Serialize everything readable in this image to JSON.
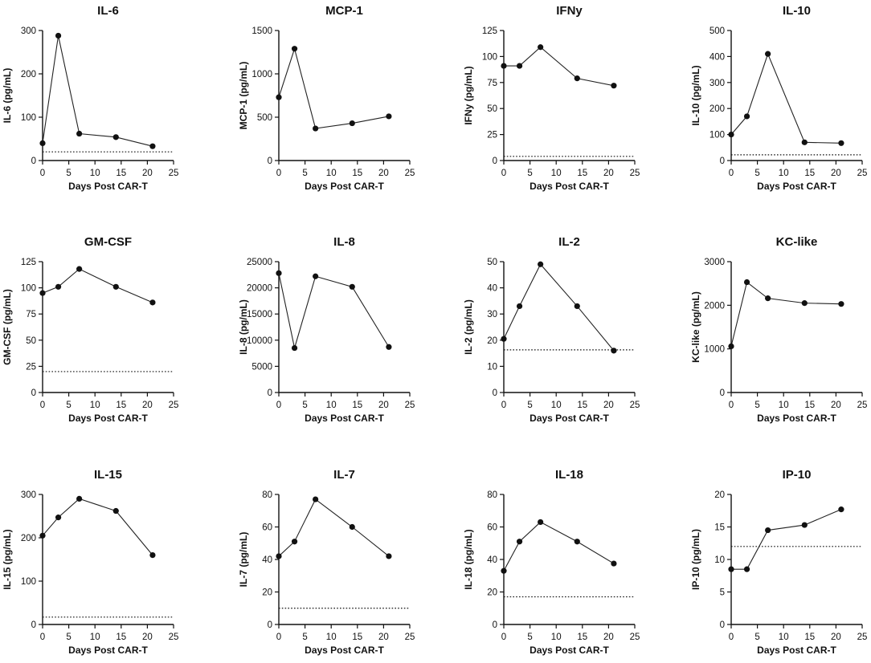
{
  "figure": {
    "chart_data": [
      {
        "type": "line",
        "title": "IL-6",
        "xlabel": "Days Post CAR-T",
        "ylabel": "IL-6 (pg/mL)",
        "x": [
          0,
          3,
          7,
          14,
          21
        ],
        "values": [
          40,
          288,
          62,
          54,
          33
        ],
        "xlim": [
          0,
          25
        ],
        "xticks": [
          0,
          5,
          10,
          15,
          20,
          25
        ],
        "ylim": [
          0,
          300
        ],
        "yticks": [
          0,
          100,
          200,
          300
        ],
        "ref_line": 20
      },
      {
        "type": "line",
        "title": "MCP-1",
        "xlabel": "Days Post CAR-T",
        "ylabel": "MCP-1 (pg/mL)",
        "x": [
          0,
          3,
          7,
          14,
          21
        ],
        "values": [
          730,
          1290,
          370,
          430,
          510
        ],
        "xlim": [
          0,
          25
        ],
        "xticks": [
          0,
          5,
          10,
          15,
          20,
          25
        ],
        "ylim": [
          0,
          1500
        ],
        "yticks": [
          0,
          500,
          1000,
          1500
        ],
        "ref_line": null
      },
      {
        "type": "line",
        "title": "IFNy",
        "xlabel": "Days Post CAR-T",
        "ylabel": "IFNy (pg/mL)",
        "x": [
          0,
          3,
          7,
          14,
          21
        ],
        "values": [
          91,
          91,
          109,
          79,
          72
        ],
        "xlim": [
          0,
          25
        ],
        "xticks": [
          0,
          5,
          10,
          15,
          20,
          25
        ],
        "ylim": [
          0,
          125
        ],
        "yticks": [
          0,
          25,
          50,
          75,
          100,
          125
        ],
        "ref_line": 4
      },
      {
        "type": "line",
        "title": "IL-10",
        "xlabel": "Days Post CAR-T",
        "ylabel": "IL-10 (pg/mL)",
        "x": [
          0,
          3,
          7,
          14,
          21
        ],
        "values": [
          100,
          170,
          410,
          70,
          67
        ],
        "xlim": [
          0,
          25
        ],
        "xticks": [
          0,
          5,
          10,
          15,
          20,
          25
        ],
        "ylim": [
          0,
          500
        ],
        "yticks": [
          0,
          100,
          200,
          300,
          400,
          500
        ],
        "ref_line": 22
      },
      {
        "type": "line",
        "title": "GM-CSF",
        "xlabel": "Days Post CAR-T",
        "ylabel": "GM-CSF (pg/mL)",
        "x": [
          0,
          3,
          7,
          14,
          21
        ],
        "values": [
          95,
          101,
          118,
          101,
          86
        ],
        "xlim": [
          0,
          25
        ],
        "xticks": [
          0,
          5,
          10,
          15,
          20,
          25
        ],
        "ylim": [
          0,
          125
        ],
        "yticks": [
          0,
          25,
          50,
          75,
          100,
          125
        ],
        "ref_line": 20
      },
      {
        "type": "line",
        "title": "IL-8",
        "xlabel": "Days Post CAR-T",
        "ylabel": "IL-8 (pg/mL)",
        "x": [
          0,
          3,
          7,
          14,
          21
        ],
        "values": [
          22800,
          8500,
          22200,
          20200,
          8700
        ],
        "xlim": [
          0,
          25
        ],
        "xticks": [
          0,
          5,
          10,
          15,
          20,
          25
        ],
        "ylim": [
          0,
          25000
        ],
        "yticks": [
          0,
          5000,
          10000,
          15000,
          20000,
          25000
        ],
        "ref_line": null
      },
      {
        "type": "line",
        "title": "IL-2",
        "xlabel": "Days Post CAR-T",
        "ylabel": "IL-2 (pg/mL)",
        "x": [
          0,
          3,
          7,
          14,
          21
        ],
        "values": [
          20.5,
          33,
          49,
          33,
          16
        ],
        "xlim": [
          0,
          25
        ],
        "xticks": [
          0,
          5,
          10,
          15,
          20,
          25
        ],
        "ylim": [
          0,
          50
        ],
        "yticks": [
          0,
          10,
          20,
          30,
          40,
          50
        ],
        "ref_line": 16.3
      },
      {
        "type": "line",
        "title": "KC-like",
        "xlabel": "Days Post CAR-T",
        "ylabel": "KC-like (pg/mL)",
        "x": [
          0,
          3,
          7,
          14,
          21
        ],
        "values": [
          1060,
          2530,
          2160,
          2050,
          2030
        ],
        "xlim": [
          0,
          25
        ],
        "xticks": [
          0,
          5,
          10,
          15,
          20,
          25
        ],
        "ylim": [
          0,
          3000
        ],
        "yticks": [
          0,
          1000,
          2000,
          3000
        ],
        "ref_line": null
      },
      {
        "type": "line",
        "title": "IL-15",
        "xlabel": "Days Post CAR-T",
        "ylabel": "IL-15 (pg/mL)",
        "x": [
          0,
          3,
          7,
          14,
          21
        ],
        "values": [
          205,
          247,
          290,
          262,
          160
        ],
        "xlim": [
          0,
          25
        ],
        "xticks": [
          0,
          5,
          10,
          15,
          20,
          25
        ],
        "ylim": [
          0,
          300
        ],
        "yticks": [
          0,
          100,
          200,
          300
        ],
        "ref_line": 17
      },
      {
        "type": "line",
        "title": "IL-7",
        "xlabel": "Days Post CAR-T",
        "ylabel": "IL-7 (pg/mL)",
        "x": [
          0,
          3,
          7,
          14,
          21
        ],
        "values": [
          42,
          51,
          77,
          60,
          42
        ],
        "xlim": [
          0,
          25
        ],
        "xticks": [
          0,
          5,
          10,
          15,
          20,
          25
        ],
        "ylim": [
          0,
          80
        ],
        "yticks": [
          0,
          20,
          40,
          60,
          80
        ],
        "ref_line": 10
      },
      {
        "type": "line",
        "title": "IL-18",
        "xlabel": "Days Post CAR-T",
        "ylabel": "IL-18 (pg/mL)",
        "x": [
          0,
          3,
          7,
          14,
          21
        ],
        "values": [
          33,
          51,
          63,
          51,
          37.5
        ],
        "xlim": [
          0,
          25
        ],
        "xticks": [
          0,
          5,
          10,
          15,
          20,
          25
        ],
        "ylim": [
          0,
          80
        ],
        "yticks": [
          0,
          20,
          40,
          60,
          80
        ],
        "ref_line": 17
      },
      {
        "type": "line",
        "title": "IP-10",
        "xlabel": "Days Post CAR-T",
        "ylabel": "IP-10 (pg/mL)",
        "x": [
          0,
          3,
          7,
          14,
          21
        ],
        "values": [
          8.5,
          8.5,
          14.5,
          15.3,
          17.7
        ],
        "xlim": [
          0,
          25
        ],
        "xticks": [
          0,
          5,
          10,
          15,
          20,
          25
        ],
        "ylim": [
          0,
          20
        ],
        "yticks": [
          0,
          5,
          10,
          15,
          20
        ],
        "ref_line": 12
      }
    ]
  }
}
